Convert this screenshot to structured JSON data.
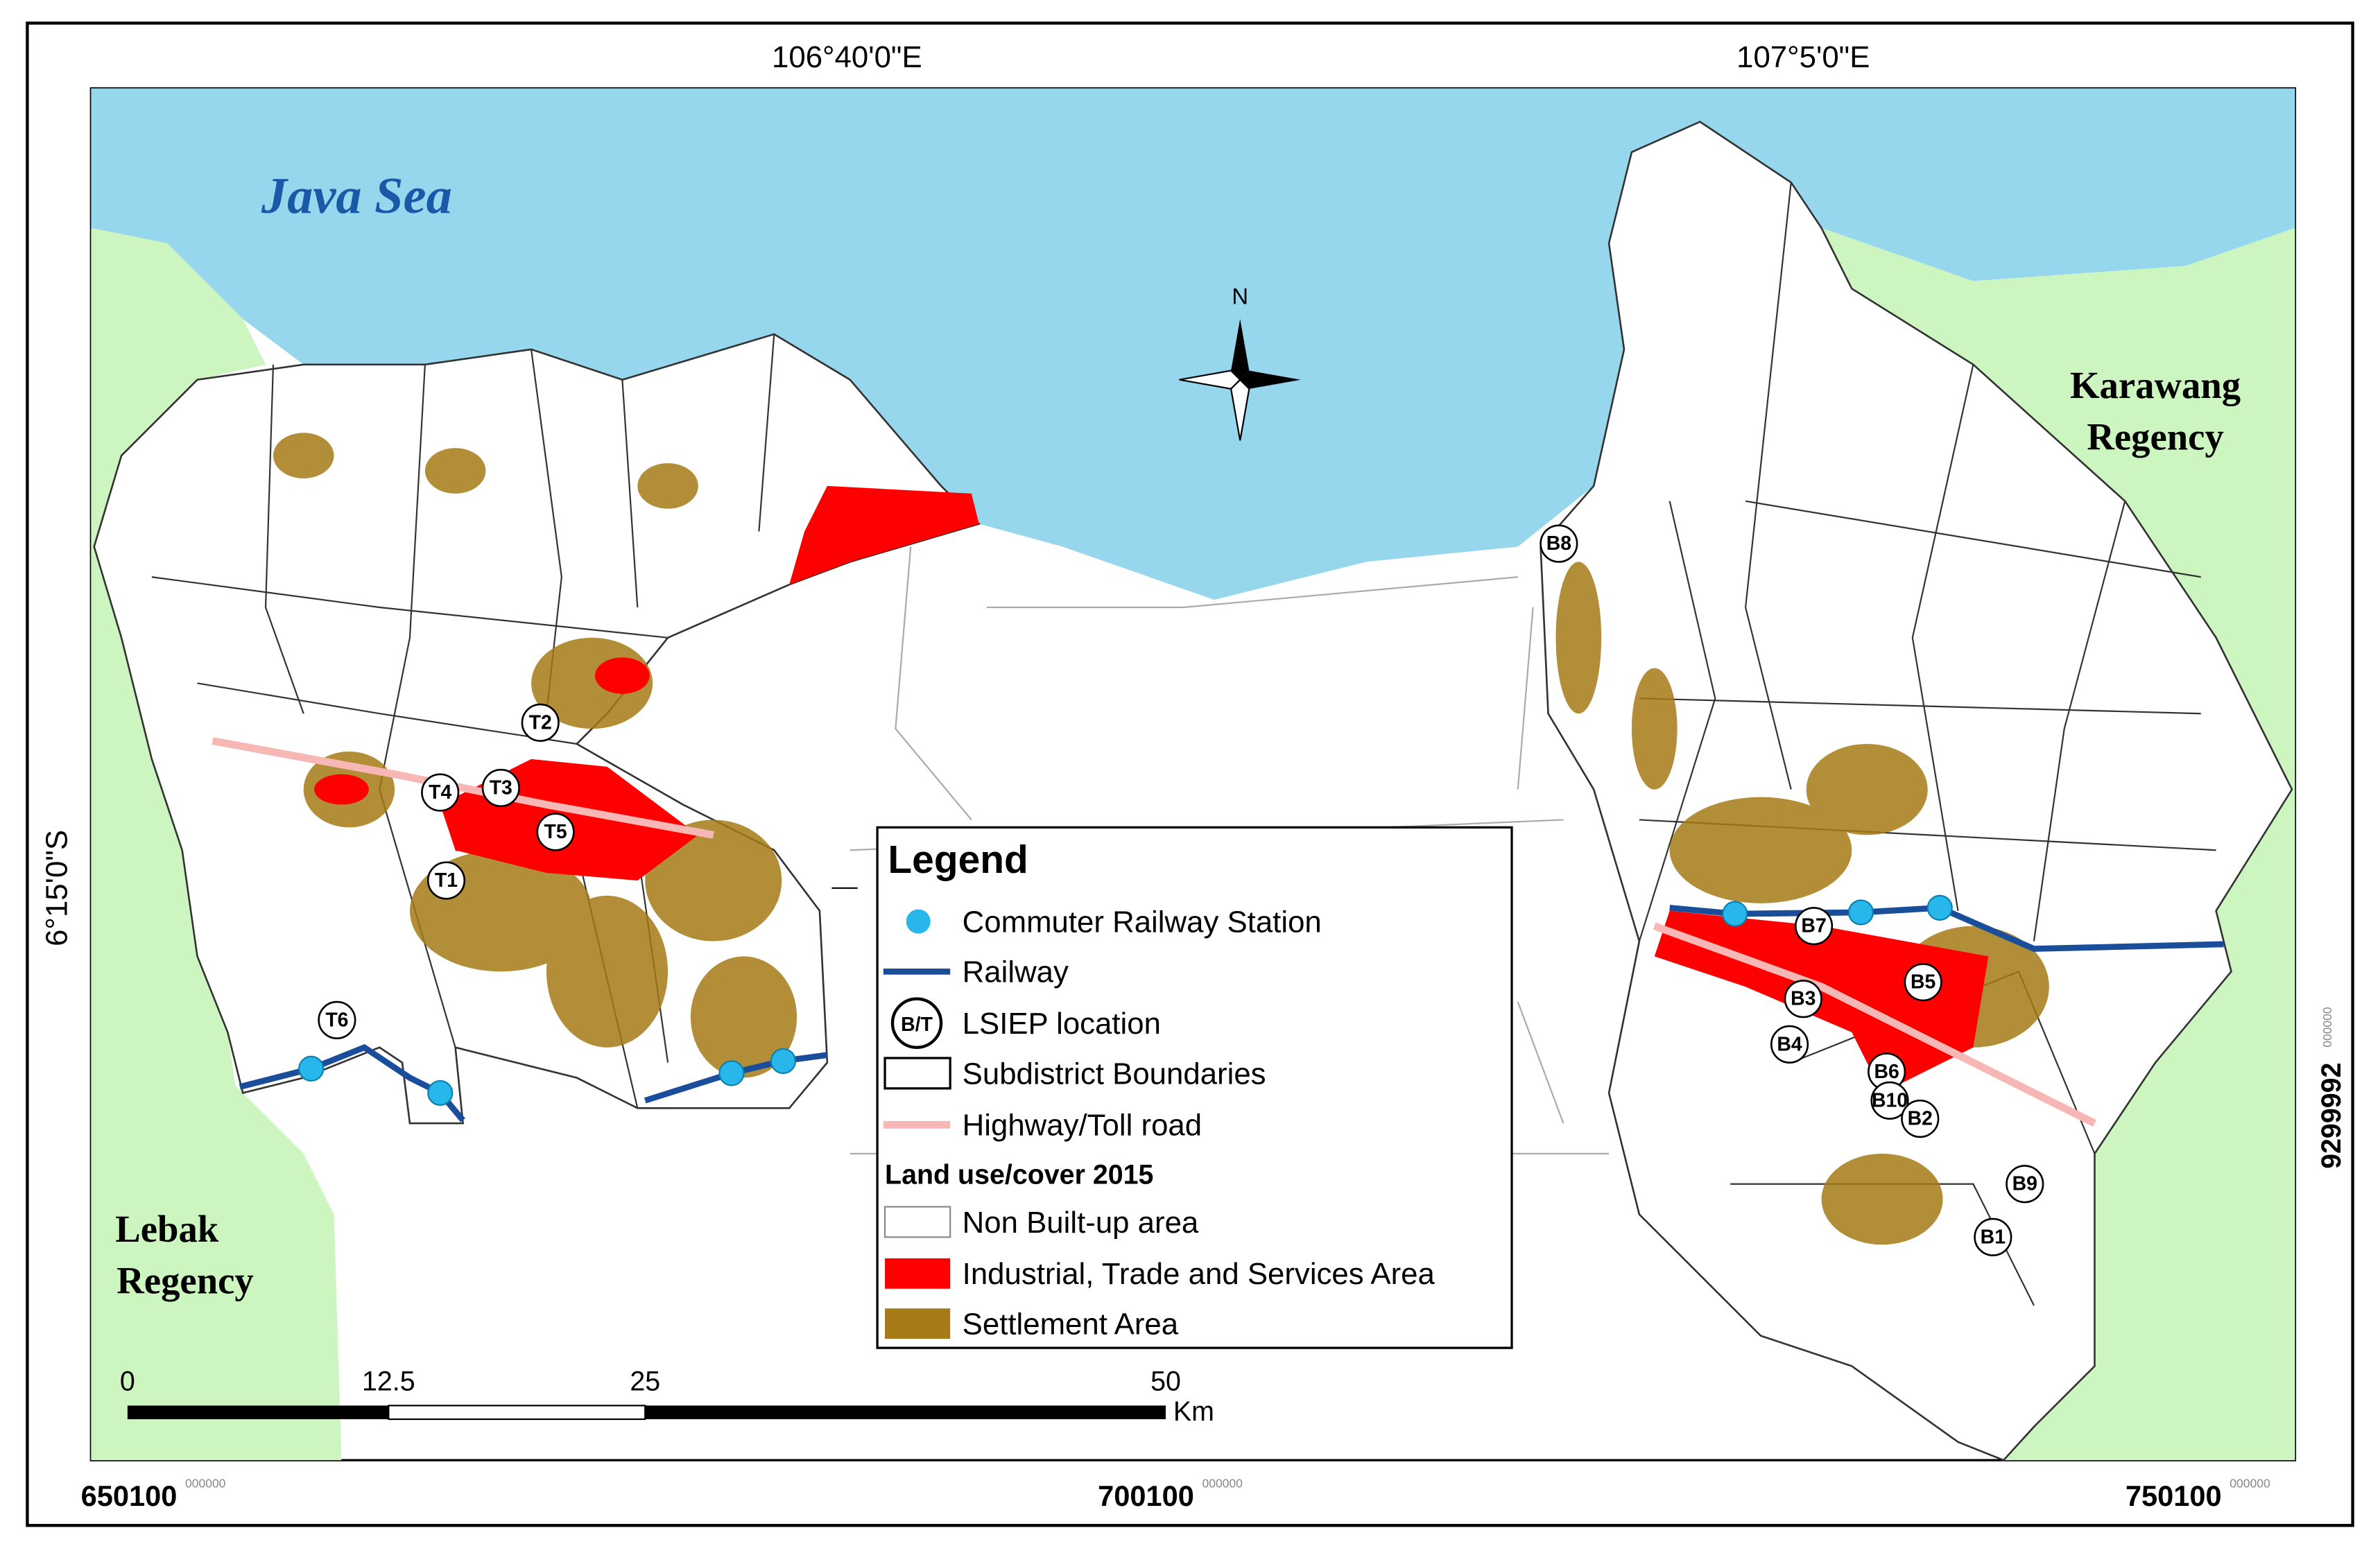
{
  "graticule": {
    "top": [
      "106°40'0\"E",
      "107°5'0\"E"
    ],
    "left": [
      "6°15'0\"S"
    ],
    "right": {
      "main": "9299992",
      "sup": "000000"
    },
    "bottom": [
      {
        "main": "650100",
        "sup": "000000"
      },
      {
        "main": "700100",
        "sup": "000000"
      },
      {
        "main": "750100",
        "sup": "000000"
      }
    ]
  },
  "places": {
    "sea": "Java Sea",
    "karawang": [
      "Karawang",
      "Regency"
    ],
    "lebak": [
      "Lebak",
      "Regency"
    ]
  },
  "north": "N",
  "locations": [
    "T2",
    "T4",
    "T3",
    "T5",
    "T1",
    "T6",
    "B8",
    "B7",
    "B5",
    "B3",
    "B4",
    "B6",
    "B10",
    "B2",
    "B9",
    "B1"
  ],
  "legend": {
    "title": "Legend",
    "items": [
      "Commuter Railway Station",
      "Railway",
      "LSIEP location",
      "Subdistrict Boundaries",
      "Highway/Toll road"
    ],
    "symbol_text": "B/T",
    "section": "Land use/cover 2015",
    "landuse": [
      "Non Built-up area",
      "Industrial, Trade and Services Area",
      "Settlement Area"
    ]
  },
  "scale_bar": {
    "ticks": [
      "0",
      "12.5",
      "25",
      "50"
    ],
    "unit": "Km"
  }
}
